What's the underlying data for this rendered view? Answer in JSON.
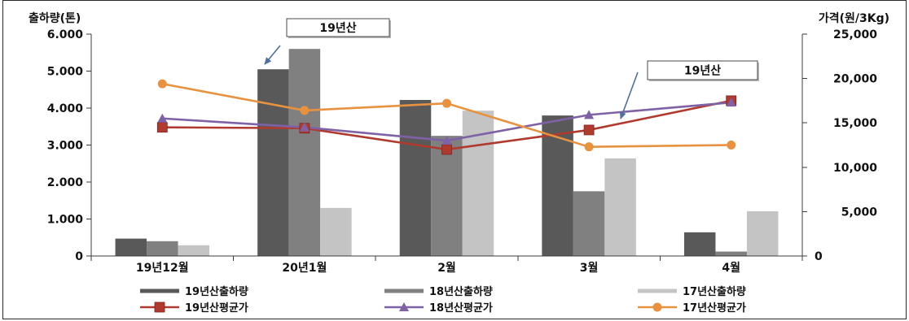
{
  "chart_data": {
    "type": "bar",
    "categories": [
      "19년12월",
      "20년1월",
      "2월",
      "3월",
      "4월"
    ],
    "ylabel": "출하량(톤)",
    "y2label": "가격(원/3Kg)",
    "ylim": [
      0,
      6000
    ],
    "y2lim": [
      0,
      25000
    ],
    "yticks": [
      "0",
      "1.000",
      "2.000",
      "3.000",
      "4.000",
      "5.000",
      "6.000"
    ],
    "y2ticks": [
      "0",
      "5,000",
      "10,000",
      "15,000",
      "20,000",
      "25,000"
    ],
    "grid": false,
    "legend": "bottom",
    "series": [
      {
        "name": "19년산출하량",
        "type": "bar",
        "axis": "left",
        "color": "#595959",
        "values": [
          470,
          5050,
          4220,
          3800,
          640
        ]
      },
      {
        "name": "18년산출하량",
        "type": "bar",
        "axis": "left",
        "color": "#808080",
        "values": [
          400,
          5600,
          3250,
          1750,
          120
        ]
      },
      {
        "name": "17년산출하량",
        "type": "bar",
        "axis": "left",
        "color": "#c4c4c4",
        "values": [
          290,
          1300,
          3930,
          2640,
          1210
        ]
      },
      {
        "name": "19년산평균가",
        "type": "line",
        "axis": "right",
        "color": "#b03a2e",
        "marker": "square",
        "values": [
          14500,
          14400,
          12000,
          14200,
          17500
        ]
      },
      {
        "name": "18년산평균가",
        "type": "line",
        "axis": "right",
        "color": "#7f62a6",
        "marker": "triangle",
        "values": [
          15500,
          14500,
          13000,
          15900,
          17300
        ]
      },
      {
        "name": "17년산평균가",
        "type": "line",
        "axis": "right",
        "color": "#e8923f",
        "marker": "circle",
        "values": [
          19400,
          16400,
          17200,
          12300,
          12500
        ]
      }
    ],
    "annotations": [
      "19년산",
      "19년산"
    ],
    "annotation_color": "#4f6f9f"
  }
}
